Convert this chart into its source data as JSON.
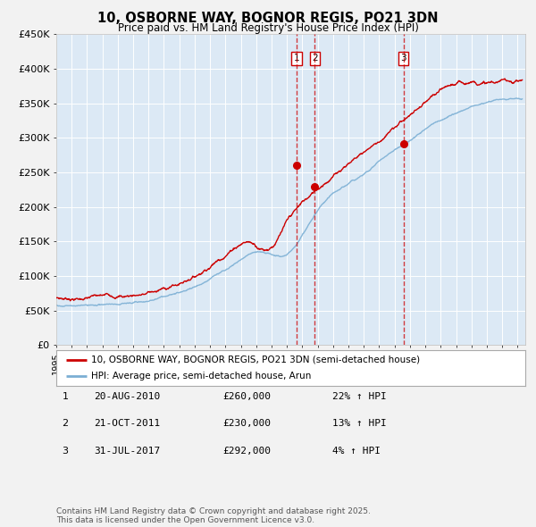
{
  "title": "10, OSBORNE WAY, BOGNOR REGIS, PO21 3DN",
  "subtitle": "Price paid vs. HM Land Registry's House Price Index (HPI)",
  "ylim": [
    0,
    450000
  ],
  "yticks": [
    0,
    50000,
    100000,
    150000,
    200000,
    250000,
    300000,
    350000,
    400000,
    450000
  ],
  "ytick_labels": [
    "£0",
    "£50K",
    "£100K",
    "£150K",
    "£200K",
    "£250K",
    "£300K",
    "£350K",
    "£400K",
    "£450K"
  ],
  "xlim_start": 1995.0,
  "xlim_end": 2025.5,
  "plot_bg_color": "#dce9f5",
  "fig_bg_color": "#f2f2f2",
  "grid_color": "#ffffff",
  "red_line_color": "#cc0000",
  "blue_line_color": "#7bafd4",
  "sale_markers": [
    {
      "year": 2010.633,
      "price": 260000,
      "label": "1"
    },
    {
      "year": 2011.806,
      "price": 230000,
      "label": "2"
    },
    {
      "year": 2017.575,
      "price": 292000,
      "label": "3"
    }
  ],
  "vline_dates": [
    2010.633,
    2011.806,
    2017.575
  ],
  "legend_entries": [
    "10, OSBORNE WAY, BOGNOR REGIS, PO21 3DN (semi-detached house)",
    "HPI: Average price, semi-detached house, Arun"
  ],
  "table_entries": [
    {
      "num": "1",
      "date": "20-AUG-2010",
      "price": "£260,000",
      "hpi": "22% ↑ HPI"
    },
    {
      "num": "2",
      "date": "21-OCT-2011",
      "price": "£230,000",
      "hpi": "13% ↑ HPI"
    },
    {
      "num": "3",
      "date": "31-JUL-2017",
      "price": "£292,000",
      "hpi": "4% ↑ HPI"
    }
  ],
  "footnote": "Contains HM Land Registry data © Crown copyright and database right 2025.\nThis data is licensed under the Open Government Licence v3.0."
}
